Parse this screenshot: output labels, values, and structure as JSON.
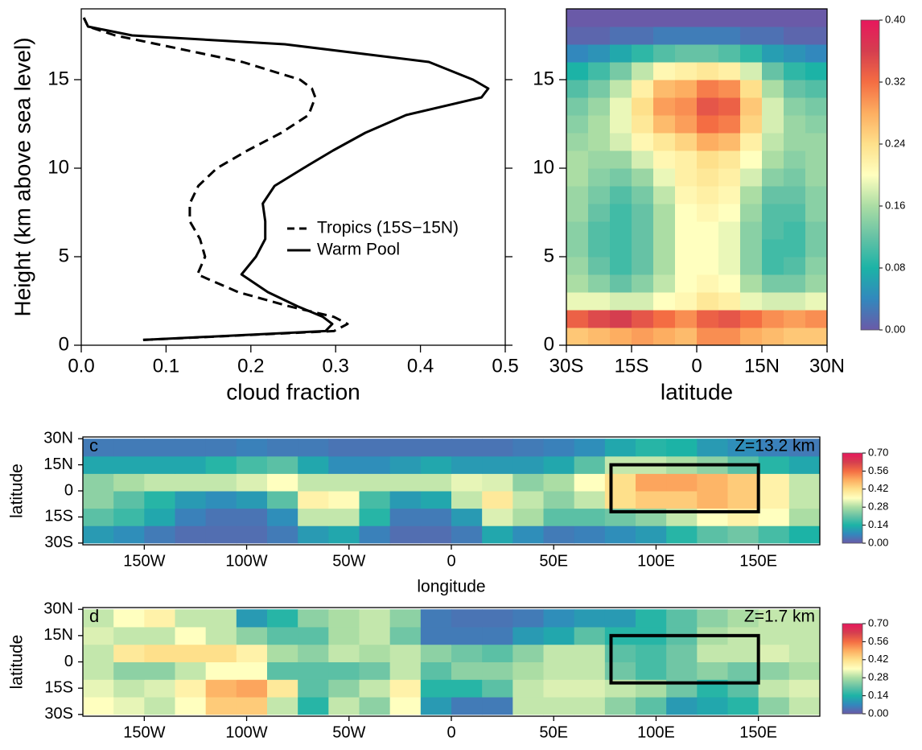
{
  "chart_data": [
    {
      "type": "line",
      "xlabel": "cloud fraction",
      "ylabel": "Height (km above sea level)",
      "y": [
        0.3,
        0.8,
        1.2,
        1.6,
        2.2,
        3,
        4,
        5,
        6,
        7,
        8,
        9,
        10,
        11,
        12,
        13,
        14,
        14.5,
        15,
        16,
        17,
        17.5,
        18,
        18.5
      ],
      "series": [
        {
          "name": "Tropics (15S−15N)",
          "color": "#000000",
          "dash": "dashed",
          "values": [
            0.073,
            0.298,
            0.314,
            0.298,
            0.245,
            0.185,
            0.137,
            0.146,
            0.14,
            0.128,
            0.128,
            0.138,
            0.16,
            0.196,
            0.236,
            0.268,
            0.276,
            0.272,
            0.258,
            0.19,
            0.09,
            0.04,
            0.008,
            0.003
          ]
        },
        {
          "name": "Warm Pool",
          "color": "#000000",
          "dash": "solid",
          "values": [
            0.073,
            0.288,
            0.296,
            0.285,
            0.255,
            0.22,
            0.189,
            0.206,
            0.217,
            0.217,
            0.214,
            0.228,
            0.262,
            0.297,
            0.335,
            0.383,
            0.472,
            0.48,
            0.462,
            0.41,
            0.24,
            0.06,
            0.008,
            0.003
          ]
        }
      ],
      "xlim": [
        0,
        0.5
      ],
      "ylim": [
        0,
        19
      ],
      "xticks": [
        {
          "value": 0,
          "label": "0.0"
        },
        0.1,
        0.2,
        0.3,
        0.4,
        0.5
      ],
      "yticks": [
        0,
        5,
        10,
        15
      ],
      "mirror_yticks": true
    },
    {
      "type": "heatmap",
      "xlabel": "latitude",
      "x": [
        -27.5,
        -22.5,
        -17.5,
        -12.5,
        -7.5,
        -2.5,
        2.5,
        7.5,
        12.5,
        17.5,
        22.5,
        27.5
      ],
      "y": [
        0.5,
        1.5,
        2.5,
        3.5,
        4.5,
        5.5,
        6.5,
        7.5,
        8.5,
        9.5,
        10.5,
        11.5,
        12.5,
        13.5,
        14.5,
        15.5,
        16.5,
        17.5,
        18.5
      ],
      "z": [
        [
          0.26,
          0.27,
          0.28,
          0.29,
          0.28,
          0.27,
          0.3,
          0.3,
          0.28,
          0.27,
          0.26,
          0.26
        ],
        [
          0.33,
          0.35,
          0.36,
          0.34,
          0.32,
          0.3,
          0.33,
          0.34,
          0.32,
          0.3,
          0.29,
          0.3
        ],
        [
          0.19,
          0.19,
          0.18,
          0.18,
          0.2,
          0.21,
          0.23,
          0.22,
          0.19,
          0.18,
          0.18,
          0.19
        ],
        [
          0.16,
          0.14,
          0.12,
          0.14,
          0.17,
          0.2,
          0.21,
          0.2,
          0.16,
          0.13,
          0.13,
          0.15
        ],
        [
          0.15,
          0.12,
          0.1,
          0.12,
          0.16,
          0.2,
          0.2,
          0.19,
          0.14,
          0.1,
          0.11,
          0.14
        ],
        [
          0.14,
          0.11,
          0.1,
          0.12,
          0.16,
          0.2,
          0.2,
          0.19,
          0.14,
          0.1,
          0.1,
          0.13
        ],
        [
          0.14,
          0.11,
          0.1,
          0.12,
          0.16,
          0.2,
          0.2,
          0.19,
          0.14,
          0.11,
          0.1,
          0.13
        ],
        [
          0.15,
          0.12,
          0.1,
          0.12,
          0.16,
          0.2,
          0.21,
          0.2,
          0.15,
          0.11,
          0.11,
          0.14
        ],
        [
          0.15,
          0.13,
          0.11,
          0.13,
          0.17,
          0.21,
          0.22,
          0.21,
          0.16,
          0.12,
          0.12,
          0.14
        ],
        [
          0.16,
          0.14,
          0.13,
          0.15,
          0.19,
          0.22,
          0.23,
          0.22,
          0.18,
          0.14,
          0.13,
          0.15
        ],
        [
          0.16,
          0.15,
          0.15,
          0.18,
          0.21,
          0.22,
          0.24,
          0.23,
          0.2,
          0.16,
          0.14,
          0.15
        ],
        [
          0.15,
          0.16,
          0.18,
          0.21,
          0.23,
          0.25,
          0.28,
          0.27,
          0.22,
          0.17,
          0.15,
          0.15
        ],
        [
          0.14,
          0.16,
          0.19,
          0.23,
          0.27,
          0.29,
          0.32,
          0.31,
          0.25,
          0.18,
          0.15,
          0.14
        ],
        [
          0.13,
          0.15,
          0.19,
          0.24,
          0.29,
          0.3,
          0.34,
          0.33,
          0.26,
          0.18,
          0.14,
          0.13
        ],
        [
          0.11,
          0.13,
          0.17,
          0.22,
          0.27,
          0.28,
          0.31,
          0.3,
          0.24,
          0.16,
          0.12,
          0.11
        ],
        [
          0.08,
          0.1,
          0.13,
          0.17,
          0.21,
          0.22,
          0.23,
          0.22,
          0.18,
          0.12,
          0.09,
          0.08
        ],
        [
          0.04,
          0.05,
          0.07,
          0.09,
          0.11,
          0.12,
          0.12,
          0.11,
          0.09,
          0.06,
          0.05,
          0.04
        ],
        [
          0.01,
          0.01,
          0.02,
          0.02,
          0.03,
          0.03,
          0.03,
          0.03,
          0.02,
          0.02,
          0.01,
          0.01
        ],
        [
          0,
          0,
          0,
          0,
          0,
          0,
          0,
          0,
          0,
          0,
          0,
          0
        ]
      ],
      "xlim": [
        -30,
        30
      ],
      "ylim": [
        0,
        19
      ],
      "xticks": [
        {
          "value": -30,
          "label": "30S"
        },
        {
          "value": -15,
          "label": "15S"
        },
        0,
        {
          "value": 15,
          "label": "15N"
        },
        {
          "value": 30,
          "label": "30N"
        }
      ],
      "yticks": [
        0,
        5,
        10,
        15
      ],
      "colors": [
        "#6a5aa8",
        "#3288bd",
        "#1cb3a6",
        "#66c2a5",
        "#abdda4",
        "#ffffbf",
        "#fee08b",
        "#fdae61",
        "#f46d43",
        "#d53e4f",
        "#e8175d"
      ],
      "colorbar": {
        "lim": [
          0,
          0.4
        ],
        "ticks": [
          {
            "value": 0,
            "label": "0.00"
          },
          {
            "value": 0.08,
            "label": "0.08"
          },
          {
            "value": 0.16,
            "label": "0.16"
          },
          {
            "value": 0.24,
            "label": "0.24"
          },
          {
            "value": 0.32,
            "label": "0.32"
          },
          {
            "value": 0.4,
            "label": "0.40"
          }
        ]
      }
    },
    {
      "type": "map",
      "panel_label": "c",
      "annotation": "Z=13.2 km",
      "xlabel": "longitude",
      "ylabel": "latitude",
      "x": [
        -172.5,
        -157.5,
        -142.5,
        -127.5,
        -112.5,
        -97.5,
        -82.5,
        -67.5,
        -52.5,
        -37.5,
        -22.5,
        -7.5,
        7.5,
        22.5,
        37.5,
        52.5,
        67.5,
        82.5,
        97.5,
        112.5,
        127.5,
        142.5,
        157.5,
        172.5
      ],
      "y": [
        -25,
        -15,
        -5,
        5,
        15,
        25
      ],
      "z": [
        [
          0.1,
          0.08,
          0.05,
          0.03,
          0.03,
          0.03,
          0.05,
          0.1,
          0.12,
          0.06,
          0.03,
          0.03,
          0.05,
          0.12,
          0.08,
          0.05,
          0.06,
          0.08,
          0.1,
          0.15,
          0.2,
          0.22,
          0.18,
          0.14
        ],
        [
          0.2,
          0.17,
          0.12,
          0.06,
          0.04,
          0.04,
          0.08,
          0.3,
          0.3,
          0.15,
          0.05,
          0.05,
          0.1,
          0.32,
          0.28,
          0.2,
          0.2,
          0.22,
          0.25,
          0.3,
          0.35,
          0.38,
          0.35,
          0.28
        ],
        [
          0.25,
          0.2,
          0.15,
          0.1,
          0.08,
          0.1,
          0.2,
          0.38,
          0.36,
          0.18,
          0.1,
          0.12,
          0.3,
          0.4,
          0.3,
          0.25,
          0.3,
          0.42,
          0.45,
          0.45,
          0.48,
          0.45,
          0.38,
          0.3
        ],
        [
          0.25,
          0.28,
          0.3,
          0.3,
          0.3,
          0.32,
          0.35,
          0.3,
          0.3,
          0.3,
          0.3,
          0.3,
          0.33,
          0.32,
          0.25,
          0.28,
          0.35,
          0.42,
          0.5,
          0.5,
          0.48,
          0.45,
          0.38,
          0.3
        ],
        [
          0.12,
          0.12,
          0.12,
          0.12,
          0.15,
          0.18,
          0.2,
          0.12,
          0.08,
          0.08,
          0.1,
          0.12,
          0.1,
          0.1,
          0.1,
          0.12,
          0.2,
          0.3,
          0.3,
          0.28,
          0.25,
          0.2,
          0.15,
          0.12
        ],
        [
          0.05,
          0.05,
          0.05,
          0.05,
          0.05,
          0.06,
          0.05,
          0.05,
          0.04,
          0.04,
          0.04,
          0.04,
          0.04,
          0.04,
          0.05,
          0.06,
          0.08,
          0.12,
          0.15,
          0.14,
          0.1,
          0.08,
          0.06,
          0.05
        ]
      ],
      "xlim": [
        -180,
        180
      ],
      "ylim": [
        -31,
        31
      ],
      "xticks": [
        {
          "value": -150,
          "label": "150W"
        },
        {
          "value": -100,
          "label": "100W"
        },
        {
          "value": -50,
          "label": "50W"
        },
        0,
        {
          "value": 50,
          "label": "50E"
        },
        {
          "value": 100,
          "label": "100E"
        },
        {
          "value": 150,
          "label": "150E"
        }
      ],
      "yticks": [
        {
          "value": -30,
          "label": "30S"
        },
        {
          "value": -15,
          "label": "15S"
        },
        0,
        {
          "value": 15,
          "label": "15N"
        },
        {
          "value": 30,
          "label": "30N"
        }
      ],
      "box_lon": [
        78,
        150
      ],
      "box_lat": [
        -12,
        15
      ],
      "colors": [
        "#6a5aa8",
        "#3288bd",
        "#1cb3a6",
        "#66c2a5",
        "#abdda4",
        "#ffffbf",
        "#fee08b",
        "#fdae61",
        "#f46d43",
        "#d53e4f",
        "#e8175d"
      ],
      "colorbar": {
        "lim": [
          0,
          0.7
        ],
        "ticks": [
          {
            "value": 0,
            "label": "0.00"
          },
          {
            "value": 0.14,
            "label": "0.14"
          },
          {
            "value": 0.28,
            "label": "0.28"
          },
          {
            "value": 0.42,
            "label": "0.42"
          },
          {
            "value": 0.56,
            "label": "0.56"
          },
          {
            "value": 0.7,
            "label": "0.70"
          }
        ]
      }
    },
    {
      "type": "map",
      "panel_label": "d",
      "annotation": "Z=1.7 km",
      "ylabel": "latitude",
      "x": [
        -172.5,
        -157.5,
        -142.5,
        -127.5,
        -112.5,
        -97.5,
        -82.5,
        -67.5,
        -52.5,
        -37.5,
        -22.5,
        -7.5,
        7.5,
        22.5,
        37.5,
        52.5,
        67.5,
        82.5,
        97.5,
        112.5,
        127.5,
        142.5,
        157.5,
        172.5
      ],
      "y": [
        -25,
        -15,
        -5,
        5,
        15,
        25
      ],
      "z": [
        [
          0.35,
          0.33,
          0.3,
          0.35,
          0.45,
          0.45,
          0.3,
          0.15,
          0.3,
          0.25,
          0.35,
          0.1,
          0.05,
          0.05,
          0.3,
          0.3,
          0.3,
          0.25,
          0.2,
          0.1,
          0.12,
          0.15,
          0.25,
          0.3
        ],
        [
          0.33,
          0.3,
          0.32,
          0.38,
          0.48,
          0.5,
          0.4,
          0.2,
          0.25,
          0.3,
          0.38,
          0.15,
          0.15,
          0.2,
          0.3,
          0.32,
          0.32,
          0.3,
          0.28,
          0.22,
          0.15,
          0.2,
          0.3,
          0.32
        ],
        [
          0.3,
          0.25,
          0.25,
          0.3,
          0.35,
          0.35,
          0.2,
          0.2,
          0.2,
          0.22,
          0.3,
          0.2,
          0.25,
          0.25,
          0.28,
          0.3,
          0.3,
          0.22,
          0.18,
          0.22,
          0.25,
          0.22,
          0.25,
          0.28
        ],
        [
          0.3,
          0.4,
          0.42,
          0.42,
          0.42,
          0.38,
          0.28,
          0.25,
          0.3,
          0.28,
          0.3,
          0.25,
          0.22,
          0.2,
          0.25,
          0.3,
          0.3,
          0.2,
          0.18,
          0.22,
          0.3,
          0.3,
          0.32,
          0.3
        ],
        [
          0.32,
          0.3,
          0.3,
          0.35,
          0.3,
          0.25,
          0.2,
          0.2,
          0.28,
          0.3,
          0.22,
          0.05,
          0.05,
          0.05,
          0.1,
          0.12,
          0.2,
          0.15,
          0.15,
          0.2,
          0.28,
          0.3,
          0.3,
          0.3
        ],
        [
          0.3,
          0.35,
          0.38,
          0.3,
          0.3,
          0.1,
          0.15,
          0.25,
          0.28,
          0.3,
          0.25,
          0.05,
          0.04,
          0.04,
          0.05,
          0.08,
          0.1,
          0.1,
          0.15,
          0.2,
          0.25,
          0.28,
          0.3,
          0.3
        ]
      ],
      "xlim": [
        -180,
        180
      ],
      "ylim": [
        -31,
        31
      ],
      "xticks": [
        {
          "value": -150,
          "label": "150W"
        },
        {
          "value": -100,
          "label": "100W"
        },
        {
          "value": -50,
          "label": "50W"
        },
        0,
        {
          "value": 50,
          "label": "50E"
        },
        {
          "value": 100,
          "label": "100E"
        },
        {
          "value": 150,
          "label": "150E"
        }
      ],
      "yticks": [
        {
          "value": -30,
          "label": "30S"
        },
        {
          "value": -15,
          "label": "15S"
        },
        0,
        {
          "value": 15,
          "label": "15N"
        },
        {
          "value": 30,
          "label": "30N"
        }
      ],
      "box_lon": [
        78,
        150
      ],
      "box_lat": [
        -12,
        15
      ],
      "colors": [
        "#6a5aa8",
        "#3288bd",
        "#1cb3a6",
        "#66c2a5",
        "#abdda4",
        "#ffffbf",
        "#fee08b",
        "#fdae61",
        "#f46d43",
        "#d53e4f",
        "#e8175d"
      ],
      "colorbar": {
        "lim": [
          0,
          0.7
        ],
        "ticks": [
          {
            "value": 0,
            "label": "0.00"
          },
          {
            "value": 0.14,
            "label": "0.14"
          },
          {
            "value": 0.28,
            "label": "0.28"
          },
          {
            "value": 0.42,
            "label": "0.42"
          },
          {
            "value": 0.56,
            "label": "0.56"
          },
          {
            "value": 0.7,
            "label": "0.70"
          }
        ]
      }
    }
  ]
}
